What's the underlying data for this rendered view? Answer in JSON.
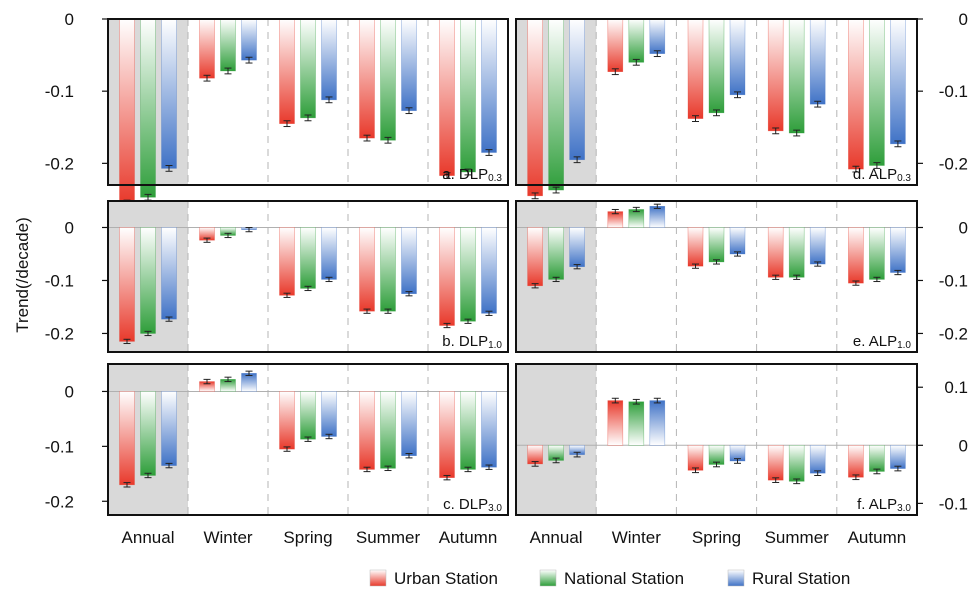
{
  "figure": {
    "ylabel": "Trend(/decade)",
    "legend": [
      "Urban Station",
      "National Station",
      "Rural Station"
    ],
    "categories": [
      "Annual",
      "Winter",
      "Spring",
      "Summer",
      "Autumn"
    ],
    "colors": {
      "urban": "#e8392b",
      "national": "#2e9e3a",
      "rural": "#3f72c6",
      "annual_shade": "#d9d9d9"
    }
  },
  "chart_data": [
    {
      "type": "bar",
      "panel": "a",
      "label_main": "a. DLP",
      "label_sub": "0.3",
      "axis_side": "left",
      "ylim": [
        -0.23,
        0.0
      ],
      "yticks": [
        0,
        -0.1,
        -0.2
      ],
      "ytick_labels": [
        "0",
        "-0.1",
        "-0.2"
      ],
      "categories": [
        "Annual",
        "Winter",
        "Spring",
        "Summer",
        "Autumn"
      ],
      "series": [
        {
          "name": "Urban Station",
          "values": [
            -0.255,
            -0.082,
            -0.145,
            -0.165,
            -0.217
          ],
          "errors": [
            0.004,
            0.004,
            0.004,
            0.004,
            0.004
          ]
        },
        {
          "name": "National Station",
          "values": [
            -0.247,
            -0.072,
            -0.137,
            -0.168,
            -0.212
          ],
          "errors": [
            0.004,
            0.004,
            0.004,
            0.004,
            0.004
          ]
        },
        {
          "name": "Rural Station",
          "values": [
            -0.207,
            -0.057,
            -0.112,
            -0.127,
            -0.185
          ],
          "errors": [
            0.004,
            0.004,
            0.004,
            0.004,
            0.004
          ]
        }
      ]
    },
    {
      "type": "bar",
      "panel": "d",
      "label_main": "d. ALP",
      "label_sub": "0.3",
      "axis_side": "right",
      "ylim": [
        -0.23,
        0.0
      ],
      "yticks": [
        0,
        -0.1,
        -0.2
      ],
      "ytick_labels": [
        "0",
        "-0.1",
        "-0.2"
      ],
      "categories": [
        "Annual",
        "Winter",
        "Spring",
        "Summer",
        "Autumn"
      ],
      "series": [
        {
          "name": "Urban Station",
          "values": [
            -0.245,
            -0.073,
            -0.138,
            -0.155,
            -0.208
          ],
          "errors": [
            0.004,
            0.004,
            0.004,
            0.004,
            0.004
          ]
        },
        {
          "name": "National Station",
          "values": [
            -0.237,
            -0.06,
            -0.13,
            -0.158,
            -0.203
          ],
          "errors": [
            0.004,
            0.004,
            0.004,
            0.004,
            0.004
          ]
        },
        {
          "name": "Rural Station",
          "values": [
            -0.195,
            -0.048,
            -0.105,
            -0.118,
            -0.173
          ],
          "errors": [
            0.004,
            0.004,
            0.004,
            0.004,
            0.004
          ]
        }
      ]
    },
    {
      "type": "bar",
      "panel": "b",
      "label_main": "b. DLP",
      "label_sub": "1.0",
      "axis_side": "left",
      "ylim": [
        -0.235,
        0.05
      ],
      "yticks": [
        0,
        -0.1,
        -0.2
      ],
      "ytick_labels": [
        "0",
        "-0.1",
        "-0.2"
      ],
      "categories": [
        "Annual",
        "Winter",
        "Spring",
        "Summer",
        "Autumn"
      ],
      "series": [
        {
          "name": "Urban Station",
          "values": [
            -0.215,
            -0.024,
            -0.128,
            -0.158,
            -0.185
          ],
          "errors": [
            0.004,
            0.004,
            0.004,
            0.004,
            0.004
          ]
        },
        {
          "name": "National Station",
          "values": [
            -0.2,
            -0.015,
            -0.115,
            -0.158,
            -0.177
          ],
          "errors": [
            0.004,
            0.004,
            0.004,
            0.004,
            0.004
          ]
        },
        {
          "name": "Rural Station",
          "values": [
            -0.173,
            -0.004,
            -0.098,
            -0.125,
            -0.162
          ],
          "errors": [
            0.004,
            0.004,
            0.004,
            0.004,
            0.004
          ]
        }
      ]
    },
    {
      "type": "bar",
      "panel": "e",
      "label_main": "e. ALP",
      "label_sub": "1.0",
      "axis_side": "right",
      "ylim": [
        -0.235,
        0.05
      ],
      "yticks": [
        0,
        -0.1,
        -0.2
      ],
      "ytick_labels": [
        "0",
        "-0.1",
        "-0.2"
      ],
      "categories": [
        "Annual",
        "Winter",
        "Spring",
        "Summer",
        "Autumn"
      ],
      "series": [
        {
          "name": "Urban Station",
          "values": [
            -0.11,
            0.03,
            -0.073,
            -0.094,
            -0.105
          ],
          "errors": [
            0.004,
            0.004,
            0.004,
            0.004,
            0.004
          ]
        },
        {
          "name": "National Station",
          "values": [
            -0.098,
            0.034,
            -0.065,
            -0.094,
            -0.098
          ],
          "errors": [
            0.004,
            0.004,
            0.004,
            0.004,
            0.004
          ]
        },
        {
          "name": "Rural Station",
          "values": [
            -0.074,
            0.04,
            -0.05,
            -0.069,
            -0.085
          ],
          "errors": [
            0.004,
            0.004,
            0.004,
            0.004,
            0.004
          ]
        }
      ]
    },
    {
      "type": "bar",
      "panel": "c",
      "label_main": "c. DLP",
      "label_sub": "3.0",
      "axis_side": "left",
      "ylim": [
        -0.225,
        0.05
      ],
      "yticks": [
        0,
        -0.1,
        -0.2
      ],
      "ytick_labels": [
        "0",
        "-0.1",
        "-0.2"
      ],
      "categories": [
        "Annual",
        "Winter",
        "Spring",
        "Summer",
        "Autumn"
      ],
      "series": [
        {
          "name": "Urban Station",
          "values": [
            -0.17,
            0.018,
            -0.105,
            -0.142,
            -0.157
          ],
          "errors": [
            0.004,
            0.004,
            0.004,
            0.004,
            0.004
          ]
        },
        {
          "name": "National Station",
          "values": [
            -0.153,
            0.022,
            -0.087,
            -0.14,
            -0.142
          ],
          "errors": [
            0.004,
            0.004,
            0.004,
            0.004,
            0.004
          ]
        },
        {
          "name": "Rural Station",
          "values": [
            -0.135,
            0.033,
            -0.082,
            -0.117,
            -0.138
          ],
          "errors": [
            0.004,
            0.004,
            0.004,
            0.004,
            0.004
          ]
        }
      ]
    },
    {
      "type": "bar",
      "panel": "f",
      "label_main": "f. ALP",
      "label_sub": "3.0",
      "axis_side": "right",
      "ylim": [
        -0.12,
        0.14
      ],
      "yticks": [
        0.1,
        0,
        -0.1
      ],
      "ytick_labels": [
        "0.1",
        "0",
        "-0.1"
      ],
      "categories": [
        "Annual",
        "Winter",
        "Spring",
        "Summer",
        "Autumn"
      ],
      "series": [
        {
          "name": "Urban Station",
          "values": [
            -0.032,
            0.077,
            -0.043,
            -0.06,
            -0.055
          ],
          "errors": [
            0.004,
            0.004,
            0.004,
            0.004,
            0.004
          ]
        },
        {
          "name": "National Station",
          "values": [
            -0.026,
            0.075,
            -0.033,
            -0.062,
            -0.045
          ],
          "errors": [
            0.004,
            0.004,
            0.004,
            0.004,
            0.004
          ]
        },
        {
          "name": "Rural Station",
          "values": [
            -0.016,
            0.077,
            -0.027,
            -0.048,
            -0.04
          ],
          "errors": [
            0.004,
            0.004,
            0.004,
            0.004,
            0.004
          ]
        }
      ]
    }
  ]
}
